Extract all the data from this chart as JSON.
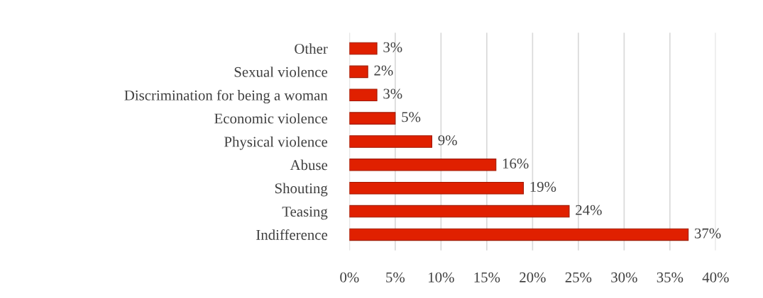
{
  "chart_data": {
    "type": "bar",
    "orientation": "horizontal",
    "categories": [
      "Other",
      "Sexual violence",
      "Discrimination for being a woman",
      "Economic violence",
      "Physical violence",
      "Abuse",
      "Shouting",
      "Teasing",
      "Indifference"
    ],
    "values": [
      3,
      2,
      3,
      5,
      9,
      16,
      19,
      24,
      37
    ],
    "value_labels": [
      "3%",
      "2%",
      "3%",
      "5%",
      "9%",
      "16%",
      "19%",
      "24%",
      "37%"
    ],
    "color": "#e02000",
    "xlim": [
      0,
      40
    ],
    "xticks": [
      {
        "value": 0,
        "label": "0%"
      },
      {
        "value": 5,
        "label": "5%"
      },
      {
        "value": 10,
        "label": "10%"
      },
      {
        "value": 15,
        "label": "15%"
      },
      {
        "value": 20,
        "label": "20%"
      },
      {
        "value": 25,
        "label": "25%"
      },
      {
        "value": 30,
        "label": "30%"
      },
      {
        "value": 35,
        "label": "35%"
      },
      {
        "value": 40,
        "label": "40%"
      }
    ],
    "grid": "x",
    "legend": false
  }
}
